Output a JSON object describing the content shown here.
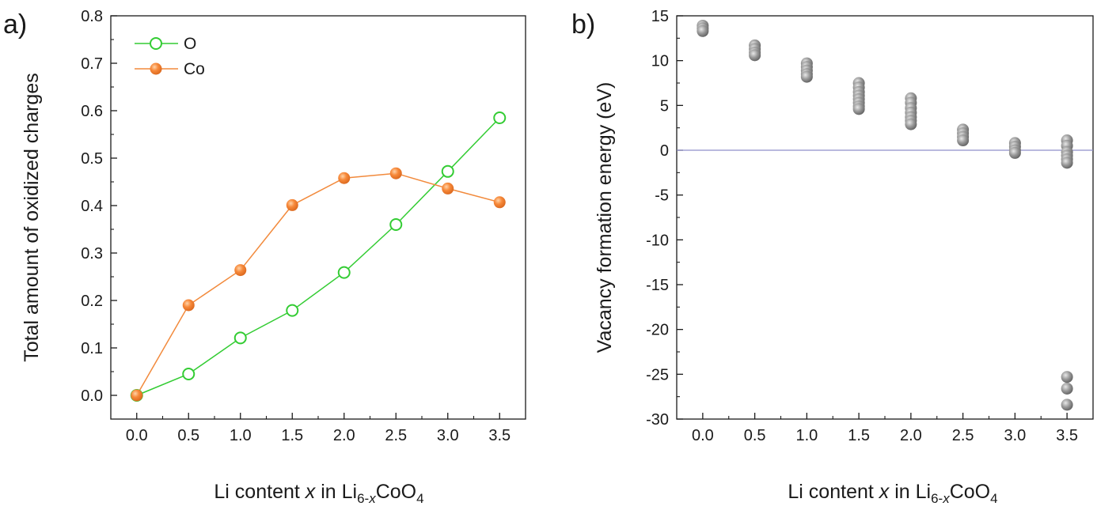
{
  "chart_data": [
    {
      "type": "line",
      "panel": "a)",
      "title": "",
      "xlabel": {
        "pre": "Li content ",
        "var": "x",
        "mid": " in Li",
        "sub1": "6-",
        "sub1var": "x",
        "mid2": "CoO",
        "sub2": "4"
      },
      "ylabel": "Total amount of oxidized charges",
      "x": [
        0.0,
        0.5,
        1.0,
        1.5,
        2.0,
        2.5,
        3.0,
        3.5
      ],
      "xticks": [
        "0.0",
        "0.5",
        "1.0",
        "1.5",
        "2.0",
        "2.5",
        "3.0",
        "3.5"
      ],
      "xlim": [
        -0.25,
        3.75
      ],
      "ylim": [
        -0.05,
        0.8
      ],
      "yticks": [
        "0.0",
        "0.1",
        "0.2",
        "0.3",
        "0.4",
        "0.5",
        "0.6",
        "0.7",
        "0.8"
      ],
      "ytick_values": [
        0.0,
        0.1,
        0.2,
        0.3,
        0.4,
        0.5,
        0.6,
        0.7,
        0.8
      ],
      "legend_position": "top-left",
      "series": [
        {
          "name": "O",
          "color": "#33cc33",
          "marker": "open-circle",
          "values": [
            0.0,
            0.045,
            0.121,
            0.179,
            0.259,
            0.36,
            0.472,
            0.585
          ]
        },
        {
          "name": "Co",
          "color": "#f28a3c",
          "marker": "filled-circle",
          "values": [
            0.0,
            0.19,
            0.264,
            0.401,
            0.458,
            0.468,
            0.436,
            0.407
          ]
        }
      ]
    },
    {
      "type": "scatter",
      "panel": "b)",
      "title": "",
      "xlabel": {
        "pre": "Li content ",
        "var": "x",
        "mid": " in Li",
        "sub1": "6-",
        "sub1var": "x",
        "mid2": "CoO",
        "sub2": "4"
      },
      "ylabel": "Vacancy formation energy (eV)",
      "xticks": [
        "0.0",
        "0.5",
        "1.0",
        "1.5",
        "2.0",
        "2.5",
        "3.0",
        "3.5"
      ],
      "xtick_values": [
        0.0,
        0.5,
        1.0,
        1.5,
        2.0,
        2.5,
        3.0,
        3.5
      ],
      "xlim": [
        -0.25,
        3.75
      ],
      "ylim": [
        -30,
        15
      ],
      "yticks": [
        "15",
        "10",
        "5",
        "0",
        "-5",
        "-10",
        "-15",
        "-20",
        "-25",
        "-30"
      ],
      "ytick_values": [
        15,
        10,
        5,
        0,
        -5,
        -10,
        -15,
        -20,
        -25,
        -30
      ],
      "reference_line": {
        "y": 0,
        "color": "#8f8fc9"
      },
      "marker_color": "#8c8c8c",
      "groups": [
        {
          "x": 0.0,
          "values": [
            13.9,
            13.6,
            13.3
          ]
        },
        {
          "x": 0.5,
          "values": [
            11.7,
            11.3,
            10.9,
            10.6
          ]
        },
        {
          "x": 1.0,
          "values": [
            9.7,
            9.3,
            8.9,
            8.5,
            8.2
          ]
        },
        {
          "x": 1.5,
          "values": [
            7.5,
            7.0,
            6.5,
            6.1,
            5.7,
            5.3,
            4.9,
            4.6
          ]
        },
        {
          "x": 2.0,
          "values": [
            5.8,
            5.3,
            4.7,
            4.2,
            3.7,
            3.3,
            2.9
          ]
        },
        {
          "x": 2.5,
          "values": [
            2.3,
            1.9,
            1.5,
            1.1
          ]
        },
        {
          "x": 3.0,
          "values": [
            0.8,
            0.4,
            0.0,
            -0.3
          ]
        },
        {
          "x": 3.5,
          "values": [
            1.1,
            0.5,
            -0.2,
            -0.6,
            -1.0,
            -1.4,
            -25.3,
            -26.6,
            -28.4
          ]
        }
      ]
    }
  ]
}
